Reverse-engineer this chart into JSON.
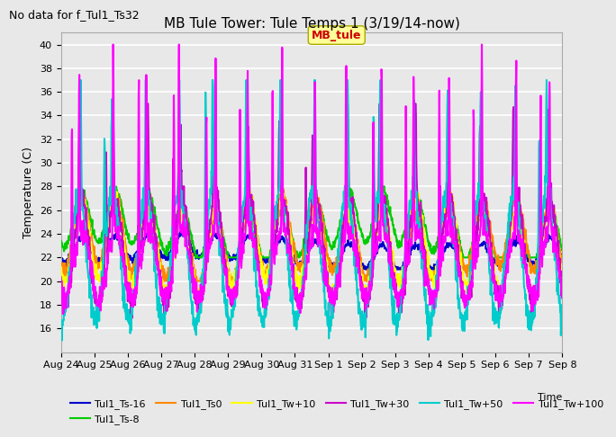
{
  "title": "MB Tule Tower: Tule Temps 1 (3/19/14-now)",
  "subtitle": "No data for f_Tul1_Ts32",
  "ylabel": "Temperature (C)",
  "xlabel": "Time",
  "ylim": [
    14,
    41
  ],
  "yticks": [
    16,
    18,
    20,
    22,
    24,
    26,
    28,
    30,
    32,
    34,
    36,
    38,
    40
  ],
  "xtick_labels": [
    "Aug 24",
    "Aug 25",
    "Aug 26",
    "Aug 27",
    "Aug 28",
    "Aug 29",
    "Aug 30",
    "Aug 31",
    "Sep 1",
    "Sep 2",
    "Sep 3",
    "Sep 4",
    "Sep 5",
    "Sep 6",
    "Sep 7",
    "Sep 8"
  ],
  "legend_entries": [
    "Tul1_Ts-16",
    "Tul1_Ts-8",
    "Tul1_Ts0",
    "Tul1_Tw+10",
    "Tul1_Tw+30",
    "Tul1_Tw+50",
    "Tul1_Tw+100"
  ],
  "legend_colors": [
    "#0000cc",
    "#00cc00",
    "#ff8800",
    "#ffff00",
    "#cc00cc",
    "#00cccc",
    "#ff00ff"
  ],
  "line_widths": [
    1.5,
    1.5,
    1.5,
    1.5,
    1.5,
    1.5,
    1.5
  ],
  "MB_tule_label": "MB_tule",
  "MB_tule_color": "#cc0000",
  "MB_tule_box_color": "#ffff99",
  "background_color": "#e8e8e8",
  "plot_bg_color": "#e8e8e8",
  "grid_color": "#ffffff",
  "title_fontsize": 11,
  "subtitle_fontsize": 9,
  "axis_label_fontsize": 9,
  "tick_fontsize": 8,
  "legend_fontsize": 8,
  "n_days": 15
}
